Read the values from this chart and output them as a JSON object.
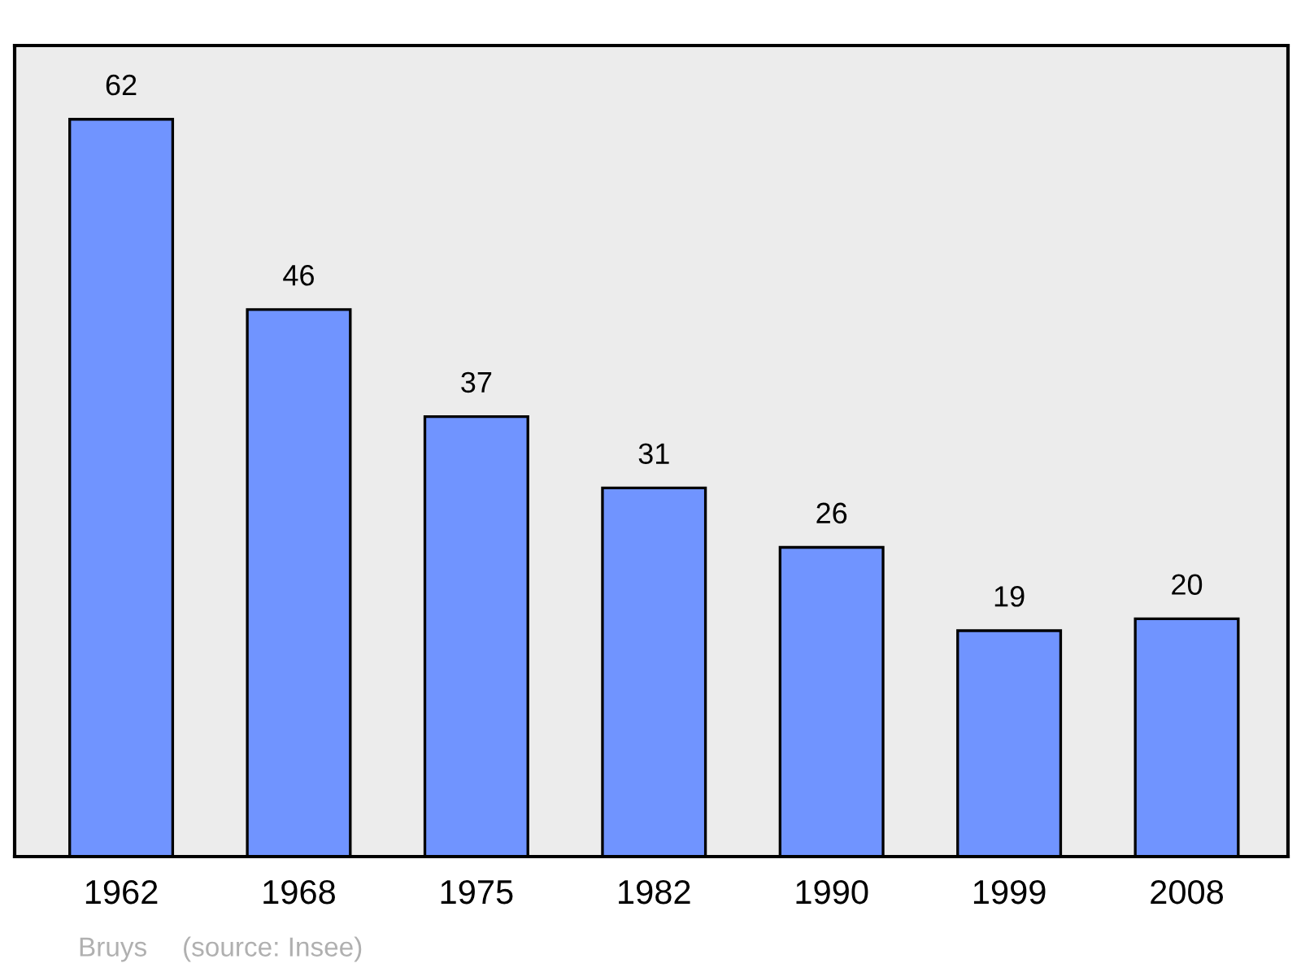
{
  "chart_data": {
    "type": "bar",
    "categories": [
      "1962",
      "1968",
      "1975",
      "1982",
      "1990",
      "1999",
      "2008"
    ],
    "values": [
      62,
      46,
      37,
      31,
      26,
      19,
      20
    ],
    "color": "#7094ff",
    "tick_labels": "x",
    "data_labels": true,
    "annotations": [
      "Bruys",
      "(source: Insee)"
    ]
  }
}
